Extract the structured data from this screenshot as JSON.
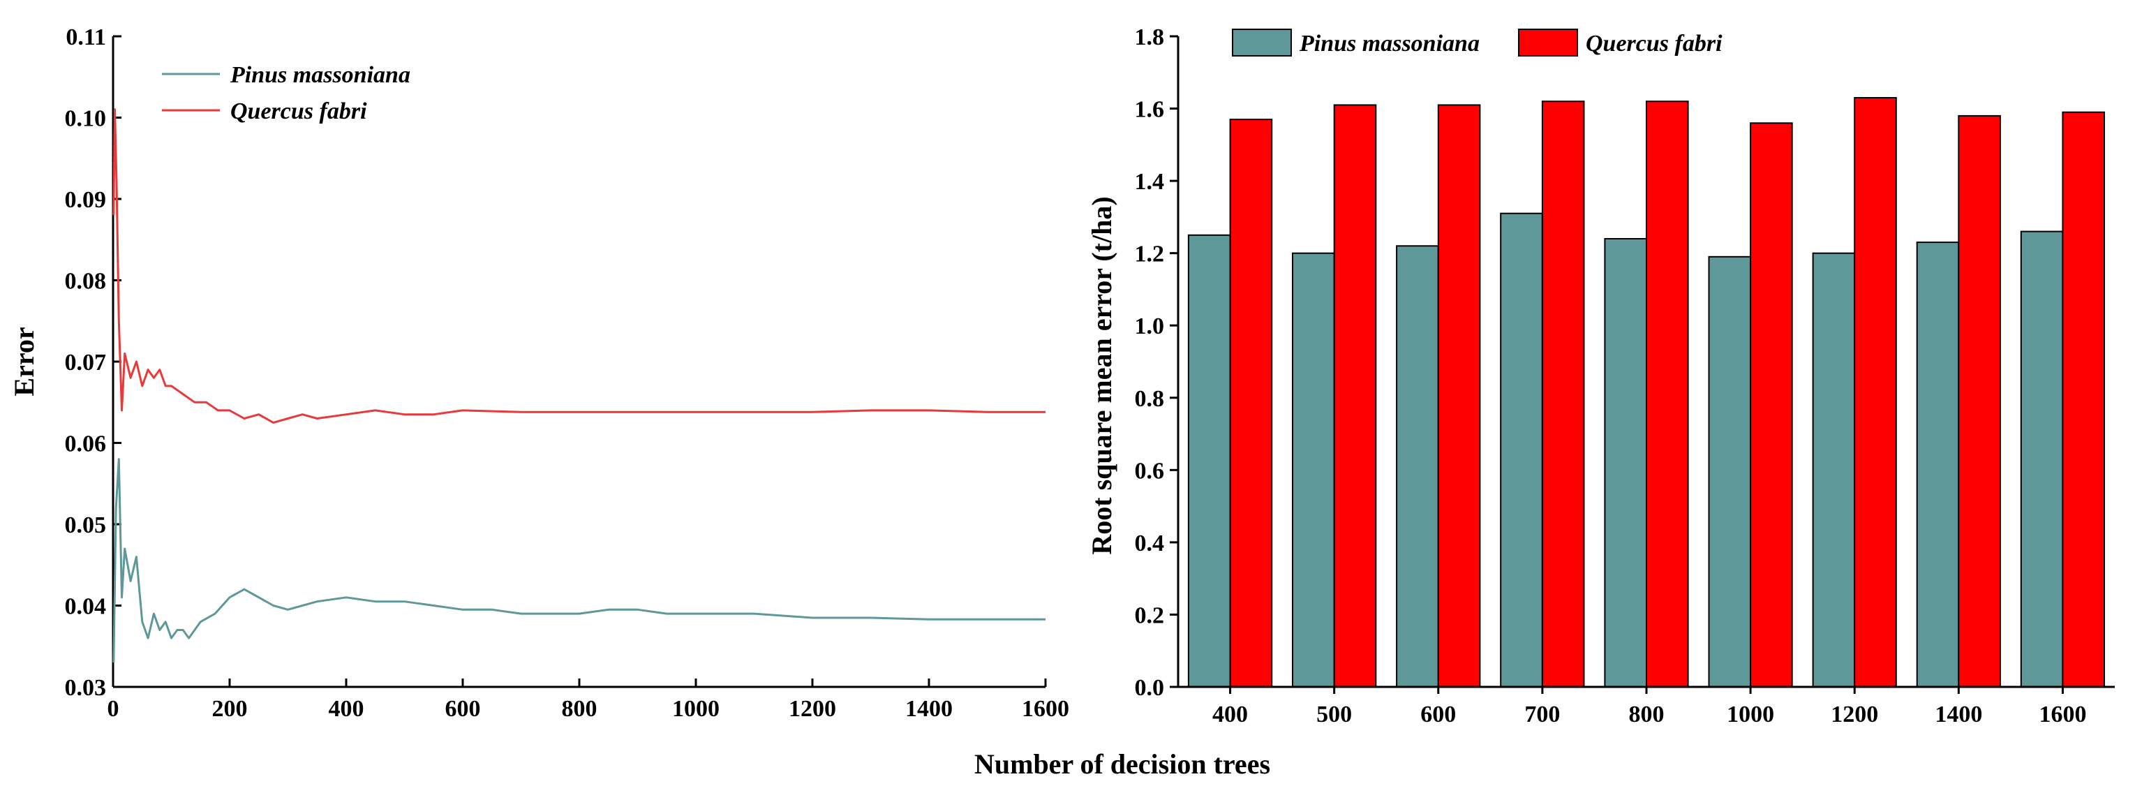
{
  "colors": {
    "pinus": "#5f9898",
    "quercus": "#ff0000",
    "quercus_line": "#e83a3a"
  },
  "shared_xlabel": "Number of decision trees",
  "chart_data": [
    {
      "type": "line",
      "ylabel": "Error",
      "xlim": [
        0,
        1600
      ],
      "ylim": [
        0.03,
        0.11
      ],
      "xticks": [
        0,
        200,
        400,
        600,
        800,
        1000,
        1200,
        1400,
        1600
      ],
      "yticks": [
        "0.03",
        "0.04",
        "0.05",
        "0.06",
        "0.07",
        "0.08",
        "0.09",
        "0.10",
        "0.11"
      ],
      "legend_position": "top-left",
      "series": [
        {
          "name": "Pinus massoniana",
          "x": [
            1,
            5,
            10,
            15,
            20,
            30,
            40,
            50,
            60,
            70,
            80,
            90,
            100,
            110,
            120,
            130,
            140,
            150,
            175,
            200,
            225,
            250,
            275,
            300,
            325,
            350,
            400,
            450,
            500,
            550,
            600,
            650,
            700,
            750,
            800,
            850,
            900,
            950,
            1000,
            1100,
            1200,
            1300,
            1400,
            1500,
            1600
          ],
          "values": [
            0.033,
            0.052,
            0.058,
            0.041,
            0.047,
            0.043,
            0.046,
            0.038,
            0.036,
            0.039,
            0.037,
            0.038,
            0.036,
            0.037,
            0.037,
            0.036,
            0.037,
            0.038,
            0.039,
            0.041,
            0.042,
            0.041,
            0.04,
            0.0395,
            0.04,
            0.0405,
            0.041,
            0.0405,
            0.0405,
            0.04,
            0.0395,
            0.0395,
            0.039,
            0.039,
            0.039,
            0.0395,
            0.0395,
            0.039,
            0.039,
            0.039,
            0.0385,
            0.0385,
            0.0383,
            0.0383,
            0.0383
          ]
        },
        {
          "name": "Quercus fabri",
          "x": [
            1,
            3,
            6,
            10,
            15,
            20,
            30,
            40,
            50,
            60,
            70,
            80,
            90,
            100,
            120,
            140,
            160,
            180,
            200,
            225,
            250,
            275,
            300,
            325,
            350,
            400,
            450,
            500,
            550,
            600,
            700,
            800,
            900,
            1000,
            1100,
            1200,
            1300,
            1400,
            1500,
            1600
          ],
          "values": [
            0.088,
            0.101,
            0.092,
            0.075,
            0.064,
            0.071,
            0.068,
            0.07,
            0.067,
            0.069,
            0.068,
            0.069,
            0.067,
            0.067,
            0.066,
            0.065,
            0.065,
            0.064,
            0.064,
            0.063,
            0.0635,
            0.0625,
            0.063,
            0.0635,
            0.063,
            0.0635,
            0.064,
            0.0635,
            0.0635,
            0.064,
            0.0638,
            0.0638,
            0.0638,
            0.0638,
            0.0638,
            0.0638,
            0.064,
            0.064,
            0.0638,
            0.0638
          ]
        }
      ]
    },
    {
      "type": "bar",
      "ylabel": "Root square mean error (t/ha)",
      "categories": [
        "400",
        "500",
        "600",
        "700",
        "800",
        "1000",
        "1200",
        "1400",
        "1600"
      ],
      "ylim": [
        0.0,
        1.8
      ],
      "yticks": [
        "0.0",
        "0.2",
        "0.4",
        "0.6",
        "0.8",
        "1.0",
        "1.2",
        "1.4",
        "1.6",
        "1.8"
      ],
      "legend_position": "top",
      "series": [
        {
          "name": "Pinus massoniana",
          "values": [
            1.25,
            1.2,
            1.22,
            1.31,
            1.24,
            1.19,
            1.2,
            1.23,
            1.26
          ]
        },
        {
          "name": "Quercus fabri",
          "values": [
            1.57,
            1.61,
            1.61,
            1.62,
            1.62,
            1.56,
            1.63,
            1.58,
            1.59
          ]
        }
      ]
    }
  ]
}
